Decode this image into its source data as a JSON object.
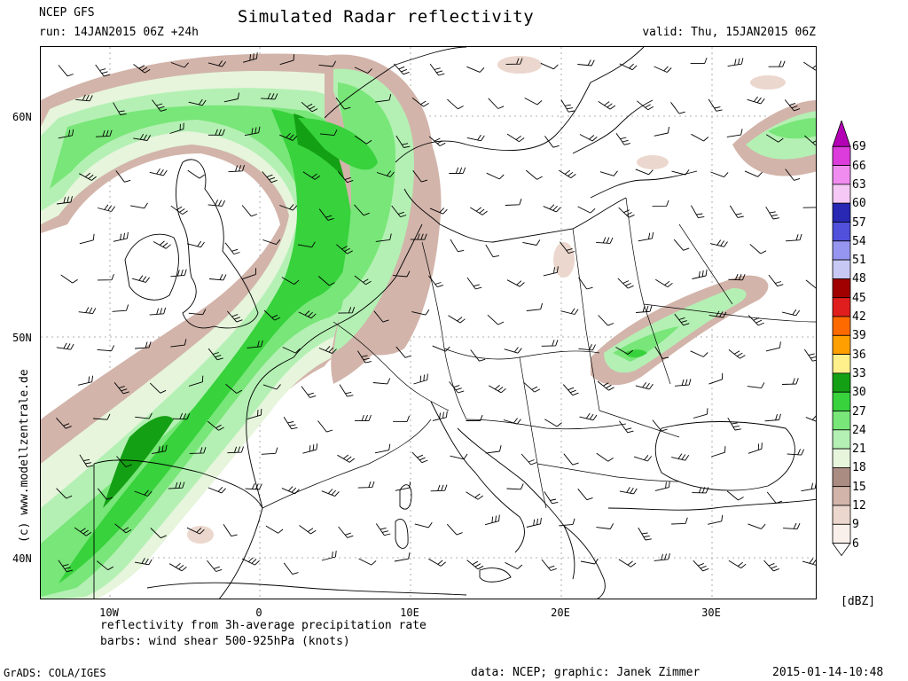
{
  "header": {
    "model": "NCEP GFS",
    "title": "Simulated Radar reflectivity",
    "run": "run: 14JAN2015 06Z +24h",
    "valid": "valid: Thu, 15JAN2015 06Z"
  },
  "axes": {
    "lat_labels": [
      "60N",
      "50N",
      "40N"
    ],
    "lon_labels": [
      "10W",
      "0",
      "10E",
      "20E",
      "30E"
    ]
  },
  "notes": {
    "line1": "reflectivity from 3h-average precipitation rate",
    "line2": "barbs: wind shear 500-925hPa (knots)"
  },
  "colorbar": {
    "unit": "[dBZ]",
    "levels": [
      {
        "label": "69",
        "color": "#b400b4"
      },
      {
        "label": "66",
        "color": "#dc3cdc"
      },
      {
        "label": "63",
        "color": "#f08cf0"
      },
      {
        "label": "60",
        "color": "#f5c8f5"
      },
      {
        "label": "57",
        "color": "#2828b4"
      },
      {
        "label": "54",
        "color": "#5050dc"
      },
      {
        "label": "51",
        "color": "#9696f0"
      },
      {
        "label": "48",
        "color": "#c8c8f5"
      },
      {
        "label": "45",
        "color": "#a00000"
      },
      {
        "label": "42",
        "color": "#e11e1e"
      },
      {
        "label": "39",
        "color": "#ff6a00"
      },
      {
        "label": "36",
        "color": "#ffa000"
      },
      {
        "label": "33",
        "color": "#fff08c"
      },
      {
        "label": "30",
        "color": "#14a014"
      },
      {
        "label": "27",
        "color": "#37d23c"
      },
      {
        "label": "24",
        "color": "#78e678"
      },
      {
        "label": "21",
        "color": "#b4f0b4"
      },
      {
        "label": "18",
        "color": "#e6f5dc"
      },
      {
        "label": "15",
        "color": "#aa8c82"
      },
      {
        "label": "12",
        "color": "#d2b4aa"
      },
      {
        "label": "9",
        "color": "#ebd7cd"
      },
      {
        "label": "6",
        "color": "#faf0eb"
      }
    ]
  },
  "footer": {
    "left": "GrADS: COLA/IGES",
    "credit": "data: NCEP; graphic: Janek Zimmer",
    "timestamp": "2015-01-14-10:48"
  },
  "watermark": "(c) www.modellzentrale.de"
}
